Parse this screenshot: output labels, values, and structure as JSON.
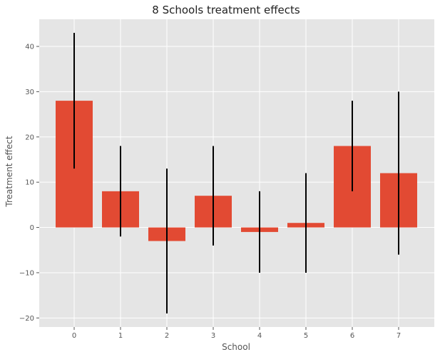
{
  "chart_data": {
    "type": "bar",
    "title": "8 Schools treatment effects",
    "xlabel": "School",
    "ylabel": "Treatment effect",
    "categories": [
      "0",
      "1",
      "2",
      "3",
      "4",
      "5",
      "6",
      "7"
    ],
    "values": [
      28,
      8,
      -3,
      7,
      -1,
      1,
      18,
      12
    ],
    "error": [
      15,
      10,
      16,
      11,
      9,
      11,
      10,
      18
    ],
    "ylim": [
      -22,
      46
    ],
    "yticks": [
      -20,
      -10,
      0,
      10,
      20,
      30,
      40
    ],
    "grid": true,
    "colors": {
      "bar": "#E24A33",
      "error_bar": "#000000",
      "plot_background": "#E5E5E5",
      "grid": "#FFFFFF"
    }
  }
}
